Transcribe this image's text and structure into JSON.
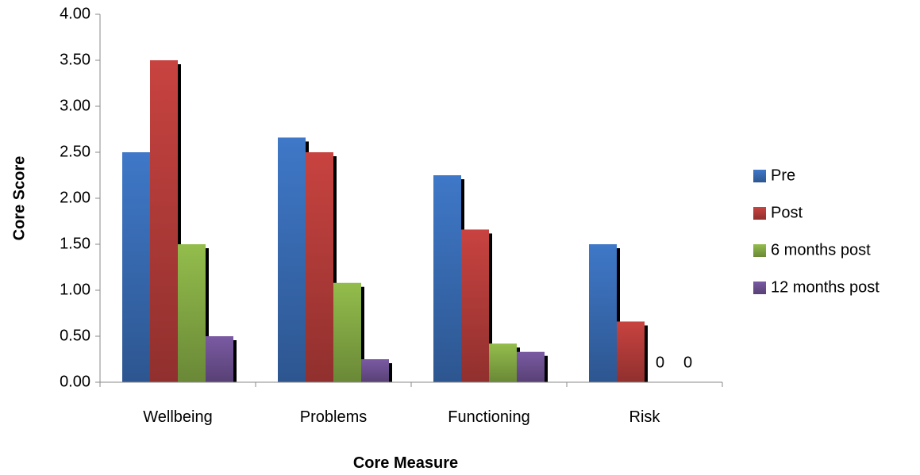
{
  "chart_data": {
    "type": "bar",
    "title": "",
    "xlabel": "Core Measure",
    "ylabel": "Core Score",
    "categories": [
      "Wellbeing",
      "Problems",
      "Functioning",
      "Risk"
    ],
    "ylim": [
      0,
      4
    ],
    "yticks": [
      "0.00",
      "0.50",
      "1.00",
      "1.50",
      "2.00",
      "2.50",
      "3.00",
      "3.50",
      "4.00"
    ],
    "grid": false,
    "legend_position": "right",
    "series": [
      {
        "name": "Pre",
        "color": "#3f78c8",
        "values": [
          2.5,
          2.66,
          2.25,
          1.5
        ]
      },
      {
        "name": "Post",
        "color": "#c84340",
        "values": [
          3.5,
          2.5,
          1.66,
          0.66
        ]
      },
      {
        "name": "6 months post",
        "color": "#93bd4c",
        "values": [
          1.5,
          1.08,
          0.42,
          0
        ]
      },
      {
        "name": "12 months post",
        "color": "#7a5aa3",
        "values": [
          0.5,
          0.25,
          0.33,
          0
        ]
      }
    ],
    "data_labels": [
      {
        "series": 2,
        "category": 3,
        "text": "0"
      },
      {
        "series": 3,
        "category": 3,
        "text": "0"
      }
    ]
  }
}
